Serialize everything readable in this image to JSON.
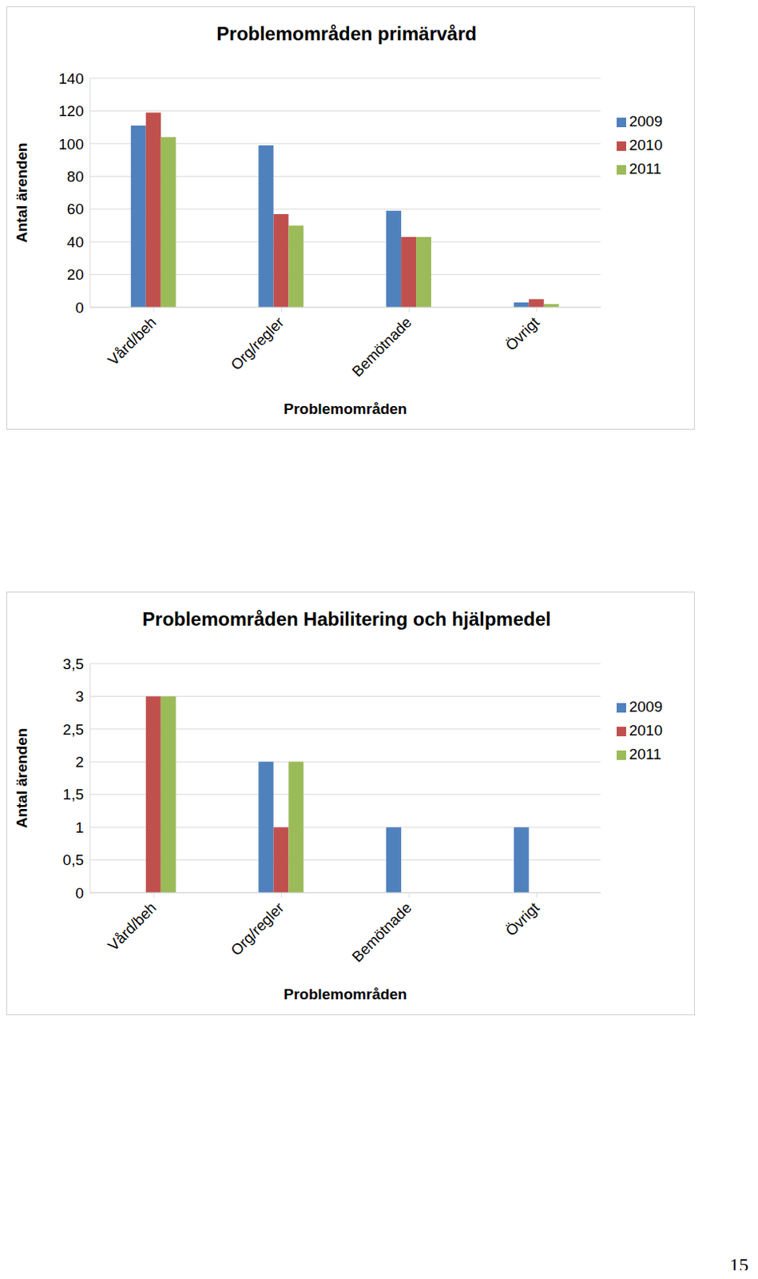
{
  "chart_data": [
    {
      "type": "bar",
      "title": "Problemområden primärvård",
      "x_label": "Problemområden",
      "y_label": "Antal ärenden",
      "categories": [
        "Vård/beh",
        "Org/regler",
        "Bemötnade",
        "Övrigt"
      ],
      "series": [
        {
          "name": "2009",
          "color": "#4f81bd",
          "values": [
            111,
            99,
            59,
            3
          ]
        },
        {
          "name": "2010",
          "color": "#c0504d",
          "values": [
            119,
            57,
            43,
            5
          ]
        },
        {
          "name": "2011",
          "color": "#9bbb59",
          "values": [
            104,
            50,
            43,
            2
          ]
        }
      ],
      "ylim": [
        0,
        140
      ],
      "yticks": [
        0,
        20,
        40,
        60,
        80,
        100,
        120,
        140
      ],
      "grid": true,
      "legend": "right"
    },
    {
      "type": "bar",
      "title": "Problemområden Habilitering och hjälpmedel",
      "x_label": "Problemområden",
      "y_label": "Antal ärenden",
      "categories": [
        "Vård/beh",
        "Org/regler",
        "Bemötnade",
        "Övrigt"
      ],
      "series": [
        {
          "name": "2009",
          "color": "#4f81bd",
          "values": [
            0,
            2,
            1,
            1
          ]
        },
        {
          "name": "2010",
          "color": "#c0504d",
          "values": [
            3,
            1,
            0,
            0
          ]
        },
        {
          "name": "2011",
          "color": "#9bbb59",
          "values": [
            3,
            2,
            0,
            0
          ]
        }
      ],
      "ylim": [
        0,
        3.5
      ],
      "yticks": [
        0,
        {
          "value": 0.5,
          "label": "0,5"
        },
        1,
        {
          "value": 1.5,
          "label": "1,5"
        },
        2,
        {
          "value": 2.5,
          "label": "2,5"
        },
        3,
        {
          "value": 3.5,
          "label": "3,5"
        }
      ],
      "grid": true,
      "legend": "right"
    }
  ],
  "page_number": "15"
}
